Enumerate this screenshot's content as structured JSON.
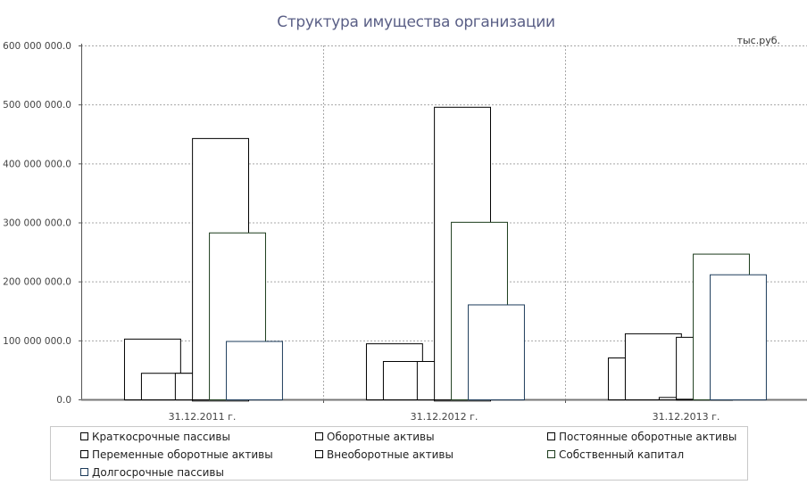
{
  "chart_data": {
    "type": "bar",
    "title": "Структура имущества организации",
    "unit": "тыс.руб.",
    "categories": [
      "31.12.2011 г.",
      "31.12.2012 г.",
      "31.12.2013 г."
    ],
    "ylim": [
      0,
      600000000
    ],
    "yticks": [
      {
        "value": 0,
        "label": "0.0"
      },
      {
        "value": 100000000,
        "label": "100 000 000.0"
      },
      {
        "value": 200000000,
        "label": "200 000 000.0"
      },
      {
        "value": 300000000,
        "label": "300 000 000.0"
      },
      {
        "value": 400000000,
        "label": "400 000 000.0"
      },
      {
        "value": 500000000,
        "label": "500 000 000.0"
      },
      {
        "value": 600000000,
        "label": "600 000 000.0"
      }
    ],
    "grid": true,
    "legend_position": "bottom",
    "series": [
      {
        "name": "Краткосрочные пассивы",
        "color": "#000000",
        "values": [
          103000000,
          95000000,
          71000000
        ]
      },
      {
        "name": "Переменные оборотные активы",
        "color": "#000000",
        "values": [
          45000000,
          65000000,
          112000000
        ]
      },
      {
        "name": "Оборотные активы",
        "color": "#000000",
        "values": [
          45000000,
          65000000,
          4000000
        ]
      },
      {
        "name": "Внеоборотные активы",
        "color": "#000000",
        "values": [
          443000000,
          496000000,
          106000000
        ]
      },
      {
        "name": "Постоянные оборотные активы",
        "color": "#000000",
        "values": [
          -2000000,
          -2000000,
          1000000
        ]
      },
      {
        "name": "Собственный капитал",
        "color": "#1a3a1a",
        "values": [
          283000000,
          301000000,
          247000000
        ]
      },
      {
        "name": "Долгосрочные пассивы",
        "color": "#1c3b5a",
        "values": [
          99000000,
          161000000,
          212000000
        ]
      }
    ]
  },
  "legend": {
    "items": [
      {
        "label": "Краткосрочные пассивы",
        "color": "#000000"
      },
      {
        "label": "Оборотные активы",
        "color": "#000000"
      },
      {
        "label": "Постоянные оборотные активы",
        "color": "#000000"
      },
      {
        "label": "Переменные оборотные активы",
        "color": "#000000"
      },
      {
        "label": "Внеоборотные активы",
        "color": "#000000"
      },
      {
        "label": "Собственный капитал",
        "color": "#1a3a1a"
      },
      {
        "label": "Долгосрочные пассивы",
        "color": "#1c3b5a"
      }
    ]
  }
}
